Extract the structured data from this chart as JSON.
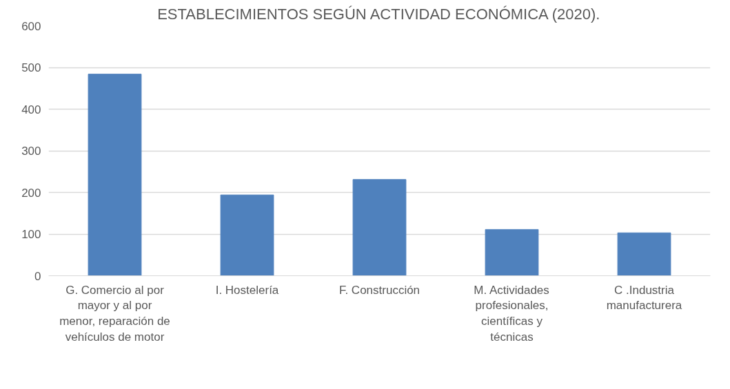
{
  "chart_data": {
    "type": "bar",
    "title": "ESTABLECIMIENTOS SEGÚN ACTIVIDAD ECONÓMICA (2020).",
    "categories": [
      "G. Comercio al por mayor y al por menor, reparación de vehículos de motor",
      "I. Hostelería",
      "F. Construcción",
      "M. Actividades profesionales, científicas y técnicas",
      "C .Industria manufacturera"
    ],
    "values": [
      484,
      194,
      231,
      111,
      103
    ],
    "color": "#4f81bd",
    "ylim": [
      0,
      600
    ],
    "yticks": [
      0,
      100,
      200,
      300,
      400,
      500,
      600
    ],
    "grid": "y"
  }
}
